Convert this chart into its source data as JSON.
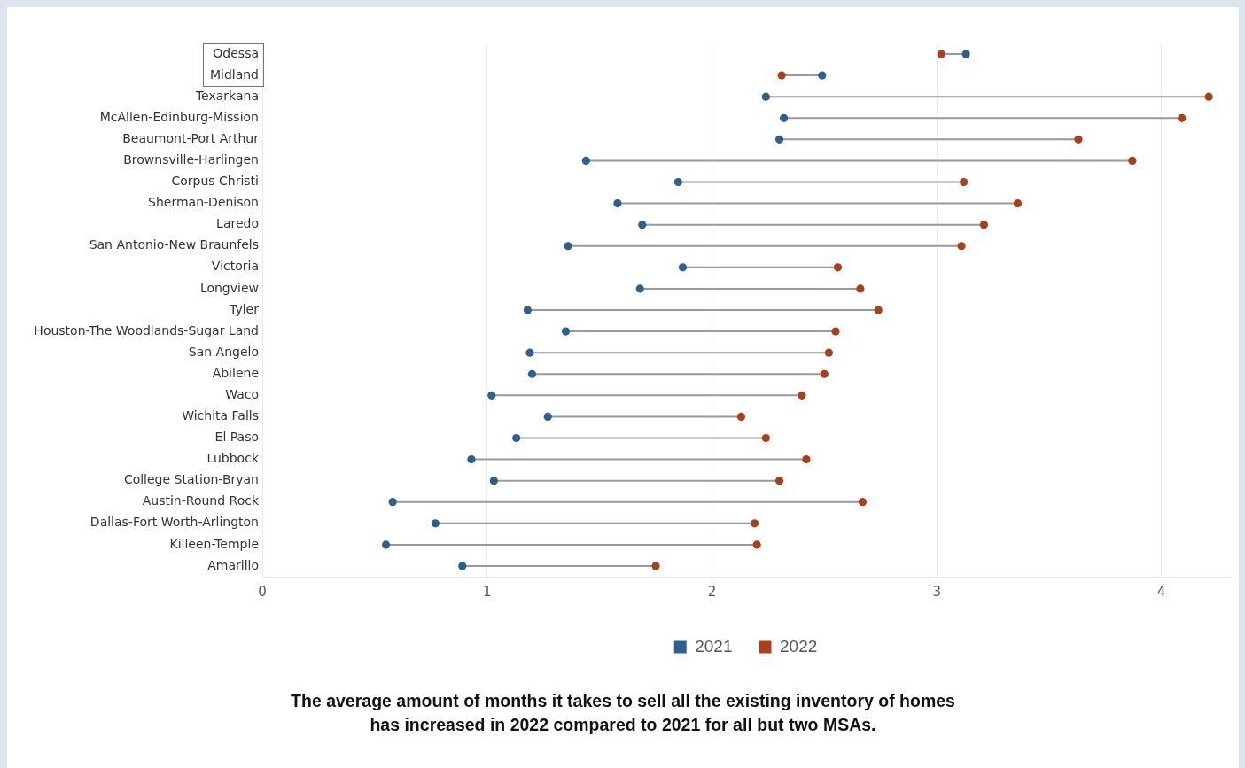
{
  "chart_data": {
    "type": "scatter",
    "orientation": "horizontal",
    "title": "The average amount of months it takes to sell all the existing inventory of homes has increased in 2022 compared to 2021 for all but two MSAs.",
    "categories": [
      "Odessa",
      "Midland",
      "Texarkana",
      "McAllen-Edinburg-Mission",
      "Beaumont-Port Arthur",
      "Brownsville-Harlingen",
      "Corpus Christi",
      "Sherman-Denison",
      "Laredo",
      "San Antonio-New Braunfels",
      "Victoria",
      "Longview",
      "Tyler",
      "Houston-The Woodlands-Sugar Land",
      "San Angelo",
      "Abilene",
      "Waco",
      "Wichita Falls",
      "El Paso",
      "Lubbock",
      "College Station-Bryan",
      "Austin-Round Rock",
      "Dallas-Fort Worth-Arlington",
      "Killeen-Temple",
      "Amarillo"
    ],
    "series": [
      {
        "name": "2021",
        "color": "#2d5f8f",
        "values": [
          3.13,
          2.49,
          2.24,
          2.32,
          2.3,
          1.44,
          1.85,
          1.58,
          1.69,
          1.36,
          1.87,
          1.68,
          1.18,
          1.35,
          1.19,
          1.2,
          1.02,
          1.27,
          1.13,
          0.93,
          1.03,
          0.58,
          0.77,
          0.55,
          0.89
        ]
      },
      {
        "name": "2022",
        "color": "#a8401f",
        "values": [
          3.02,
          2.31,
          4.21,
          4.09,
          3.63,
          3.87,
          3.12,
          3.36,
          3.21,
          3.11,
          2.56,
          2.66,
          2.74,
          2.55,
          2.52,
          2.5,
          2.4,
          2.13,
          2.24,
          2.42,
          2.3,
          2.67,
          2.19,
          2.2,
          1.75
        ]
      }
    ],
    "xlim": [
      0,
      4.3
    ],
    "xticks": [
      0,
      1,
      2,
      3,
      4
    ],
    "grid": "x",
    "legend": "bottom",
    "marker": "circle"
  }
}
